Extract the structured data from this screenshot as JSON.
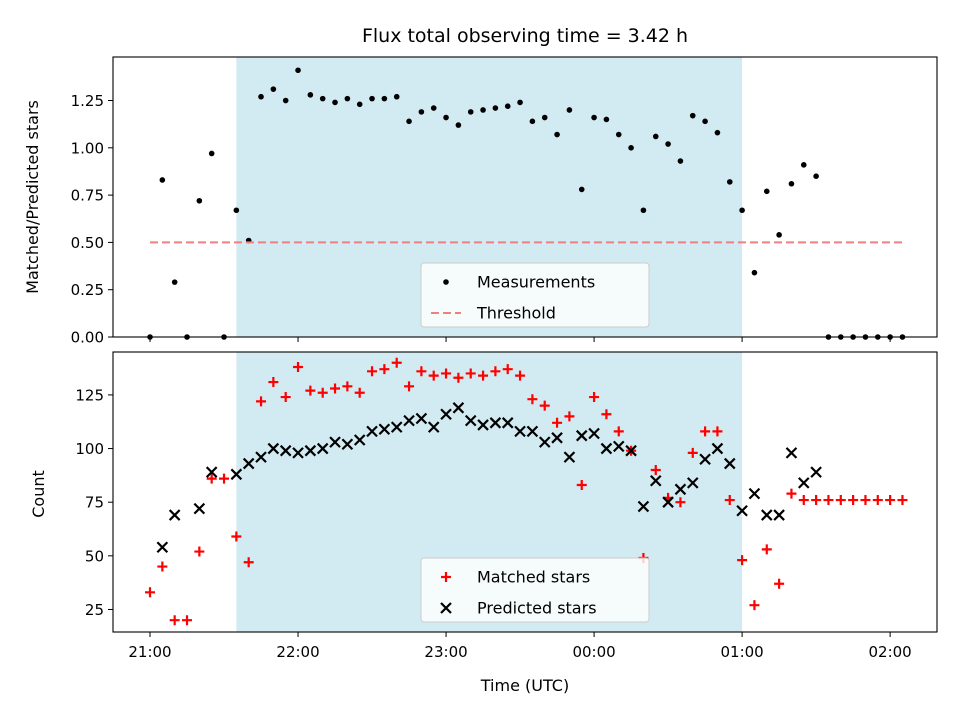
{
  "chart_data": [
    {
      "type": "scatter",
      "title": "Flux total observing time = 3.42 h",
      "xlabel": "",
      "ylabel": "Matched/Predicted stars",
      "x_unit": "time (UTC)",
      "xlim": [
        "20:45",
        "02:19"
      ],
      "ylim": [
        0,
        1.48
      ],
      "x_ticks": [
        "21:00",
        "22:00",
        "23:00",
        "00:00",
        "01:00",
        "02:00"
      ],
      "y_ticks": [
        "0.00",
        "0.25",
        "0.50",
        "0.75",
        "1.00",
        "1.25"
      ],
      "shaded_span": [
        "21:35",
        "01:00"
      ],
      "shaded_color": "#add8e6",
      "legend": {
        "placement": "lower-center",
        "entries": [
          "Measurements",
          "Threshold"
        ]
      },
      "series": [
        {
          "name": "Measurements",
          "marker": "dot",
          "color": "#000000",
          "points": [
            [
              "21:00",
              0.0
            ],
            [
              "21:05",
              0.83
            ],
            [
              "21:10",
              0.29
            ],
            [
              "21:15",
              0.0
            ],
            [
              "21:20",
              0.72
            ],
            [
              "21:25",
              0.97
            ],
            [
              "21:30",
              0.0
            ],
            [
              "21:35",
              0.67
            ],
            [
              "21:40",
              0.51
            ],
            [
              "21:45",
              1.27
            ],
            [
              "21:50",
              1.31
            ],
            [
              "21:55",
              1.25
            ],
            [
              "22:00",
              1.41
            ],
            [
              "22:05",
              1.28
            ],
            [
              "22:10",
              1.26
            ],
            [
              "22:15",
              1.24
            ],
            [
              "22:20",
              1.26
            ],
            [
              "22:25",
              1.23
            ],
            [
              "22:30",
              1.26
            ],
            [
              "22:35",
              1.26
            ],
            [
              "22:40",
              1.27
            ],
            [
              "22:45",
              1.14
            ],
            [
              "22:50",
              1.19
            ],
            [
              "22:55",
              1.21
            ],
            [
              "23:00",
              1.16
            ],
            [
              "23:05",
              1.12
            ],
            [
              "23:10",
              1.19
            ],
            [
              "23:15",
              1.2
            ],
            [
              "23:20",
              1.21
            ],
            [
              "23:25",
              1.22
            ],
            [
              "23:30",
              1.24
            ],
            [
              "23:35",
              1.14
            ],
            [
              "23:40",
              1.16
            ],
            [
              "23:45",
              1.07
            ],
            [
              "23:50",
              1.2
            ],
            [
              "23:55",
              0.78
            ],
            [
              "00:00",
              1.16
            ],
            [
              "00:05",
              1.15
            ],
            [
              "00:10",
              1.07
            ],
            [
              "00:15",
              1.0
            ],
            [
              "00:20",
              0.67
            ],
            [
              "00:25",
              1.06
            ],
            [
              "00:30",
              1.02
            ],
            [
              "00:35",
              0.93
            ],
            [
              "00:40",
              1.17
            ],
            [
              "00:45",
              1.14
            ],
            [
              "00:50",
              1.08
            ],
            [
              "00:55",
              0.82
            ],
            [
              "01:00",
              0.67
            ],
            [
              "01:05",
              0.34
            ],
            [
              "01:10",
              0.77
            ],
            [
              "01:15",
              0.54
            ],
            [
              "01:20",
              0.81
            ],
            [
              "01:25",
              0.91
            ],
            [
              "01:30",
              0.85
            ],
            [
              "01:35",
              0.0
            ],
            [
              "01:40",
              0.0
            ],
            [
              "01:45",
              0.0
            ],
            [
              "01:50",
              0.0
            ],
            [
              "01:55",
              0.0
            ],
            [
              "02:00",
              0.0
            ],
            [
              "02:05",
              0.0
            ]
          ]
        },
        {
          "name": "Threshold",
          "style": "dashed",
          "color": "#f08080",
          "points": [
            [
              "21:00",
              0.5
            ],
            [
              "02:05",
              0.5
            ]
          ]
        }
      ]
    },
    {
      "type": "scatter",
      "title": "",
      "xlabel": "Time (UTC)",
      "ylabel": "Count",
      "x_unit": "time (UTC)",
      "xlim": [
        "20:45",
        "02:19"
      ],
      "ylim": [
        14.5,
        145
      ],
      "x_ticks": [
        "21:00",
        "22:00",
        "23:00",
        "00:00",
        "01:00",
        "02:00"
      ],
      "y_ticks": [
        "25",
        "50",
        "75",
        "100",
        "125"
      ],
      "shaded_span": [
        "21:35",
        "01:00"
      ],
      "shaded_color": "#add8e6",
      "legend": {
        "placement": "lower-center",
        "entries": [
          "Matched stars",
          "Predicted stars"
        ]
      },
      "series": [
        {
          "name": "Matched stars",
          "marker": "plus",
          "color": "#ff0000",
          "points": [
            [
              "21:00",
              33
            ],
            [
              "21:05",
              45
            ],
            [
              "21:10",
              20
            ],
            [
              "21:15",
              20
            ],
            [
              "21:20",
              52
            ],
            [
              "21:25",
              86
            ],
            [
              "21:30",
              86
            ],
            [
              "21:35",
              59
            ],
            [
              "21:40",
              47
            ],
            [
              "21:45",
              122
            ],
            [
              "21:50",
              131
            ],
            [
              "21:55",
              124
            ],
            [
              "22:00",
              138
            ],
            [
              "22:05",
              127
            ],
            [
              "22:10",
              126
            ],
            [
              "22:15",
              128
            ],
            [
              "22:20",
              129
            ],
            [
              "22:25",
              126
            ],
            [
              "22:30",
              136
            ],
            [
              "22:35",
              137
            ],
            [
              "22:40",
              140
            ],
            [
              "22:45",
              129
            ],
            [
              "22:50",
              136
            ],
            [
              "22:55",
              134
            ],
            [
              "23:00",
              135
            ],
            [
              "23:05",
              133
            ],
            [
              "23:10",
              135
            ],
            [
              "23:15",
              134
            ],
            [
              "23:20",
              136
            ],
            [
              "23:25",
              137
            ],
            [
              "23:30",
              134
            ],
            [
              "23:35",
              123
            ],
            [
              "23:40",
              120
            ],
            [
              "23:45",
              112
            ],
            [
              "23:50",
              115
            ],
            [
              "23:55",
              83
            ],
            [
              "00:00",
              124
            ],
            [
              "00:05",
              116
            ],
            [
              "00:10",
              108
            ],
            [
              "00:15",
              99
            ],
            [
              "00:20",
              49
            ],
            [
              "00:25",
              90
            ],
            [
              "00:30",
              77
            ],
            [
              "00:35",
              75
            ],
            [
              "00:40",
              98
            ],
            [
              "00:45",
              108
            ],
            [
              "00:50",
              108
            ],
            [
              "00:55",
              76
            ],
            [
              "01:00",
              48
            ],
            [
              "01:05",
              27
            ],
            [
              "01:10",
              53
            ],
            [
              "01:15",
              37
            ],
            [
              "01:20",
              79
            ],
            [
              "01:25",
              76
            ],
            [
              "01:30",
              76
            ],
            [
              "01:35",
              76
            ],
            [
              "01:40",
              76
            ],
            [
              "01:45",
              76
            ],
            [
              "01:50",
              76
            ],
            [
              "01:55",
              76
            ],
            [
              "02:00",
              76
            ],
            [
              "02:05",
              76
            ]
          ]
        },
        {
          "name": "Predicted stars",
          "marker": "x",
          "color": "#000000",
          "points": [
            [
              "21:05",
              54
            ],
            [
              "21:10",
              69
            ],
            [
              "21:20",
              72
            ],
            [
              "21:25",
              89
            ],
            [
              "21:35",
              88
            ],
            [
              "21:40",
              93
            ],
            [
              "21:45",
              96
            ],
            [
              "21:50",
              100
            ],
            [
              "21:55",
              99
            ],
            [
              "22:00",
              98
            ],
            [
              "22:05",
              99
            ],
            [
              "22:10",
              100
            ],
            [
              "22:15",
              103
            ],
            [
              "22:20",
              102
            ],
            [
              "22:25",
              104
            ],
            [
              "22:30",
              108
            ],
            [
              "22:35",
              109
            ],
            [
              "22:40",
              110
            ],
            [
              "22:45",
              113
            ],
            [
              "22:50",
              114
            ],
            [
              "22:55",
              110
            ],
            [
              "23:00",
              116
            ],
            [
              "23:05",
              119
            ],
            [
              "23:10",
              113
            ],
            [
              "23:15",
              111
            ],
            [
              "23:20",
              112
            ],
            [
              "23:25",
              112
            ],
            [
              "23:30",
              108
            ],
            [
              "23:35",
              108
            ],
            [
              "23:40",
              103
            ],
            [
              "23:45",
              105
            ],
            [
              "23:50",
              96
            ],
            [
              "23:55",
              106
            ],
            [
              "00:00",
              107
            ],
            [
              "00:05",
              100
            ],
            [
              "00:10",
              101
            ],
            [
              "00:15",
              99
            ],
            [
              "00:20",
              73
            ],
            [
              "00:25",
              85
            ],
            [
              "00:30",
              75
            ],
            [
              "00:35",
              81
            ],
            [
              "00:40",
              84
            ],
            [
              "00:45",
              95
            ],
            [
              "00:50",
              100
            ],
            [
              "00:55",
              93
            ],
            [
              "01:00",
              71
            ],
            [
              "01:05",
              79
            ],
            [
              "01:10",
              69
            ],
            [
              "01:15",
              69
            ],
            [
              "01:20",
              98
            ],
            [
              "01:25",
              84
            ],
            [
              "01:30",
              89
            ]
          ]
        }
      ]
    }
  ]
}
